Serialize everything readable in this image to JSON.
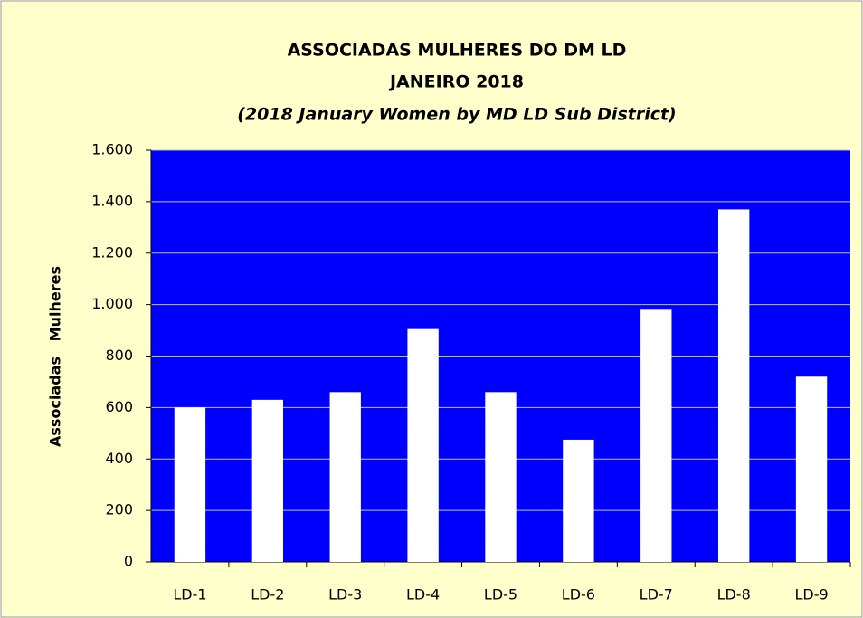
{
  "chart_data": {
    "type": "bar",
    "title": [
      "ASSOCIADAS MULHERES DO DM LD",
      "JANEIRO 2018"
    ],
    "subtitle": "(2018 January Women by MD LD Sub District)",
    "y_axis_label": "Associadas   Mulheres",
    "categories": [
      "LD-1",
      "LD-2",
      "LD-3",
      "LD-4",
      "LD-5",
      "LD-6",
      "LD-7",
      "LD-8",
      "LD-9"
    ],
    "values": [
      600,
      630,
      660,
      905,
      660,
      475,
      980,
      1370,
      720
    ],
    "color": "#ffffff",
    "plot_background": "#0000ff",
    "ylim": [
      0,
      1600
    ],
    "yticks": [
      0,
      200,
      400,
      600,
      800,
      {
        "value": 1000,
        "label": "1.000"
      },
      {
        "value": 1200,
        "label": "1.200"
      },
      {
        "value": 1400,
        "label": "1.400"
      },
      {
        "value": 1600,
        "label": "1.600"
      }
    ],
    "grid": true
  }
}
